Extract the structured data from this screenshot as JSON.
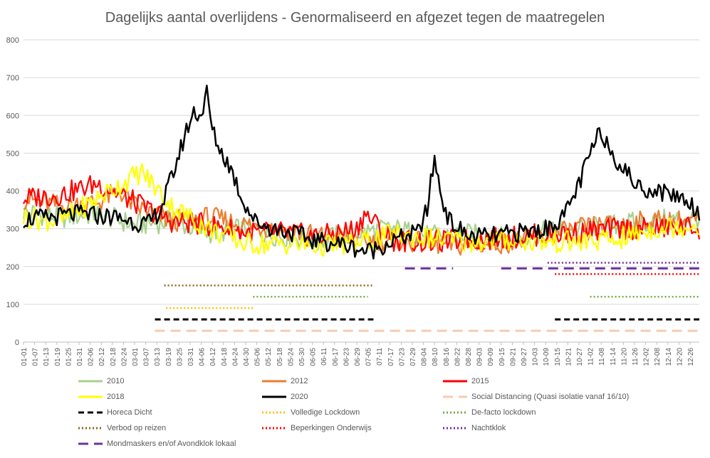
{
  "chart_data": {
    "type": "line",
    "title": "Dagelijks aantal overlijdens - Genormaliseerd  en afgezet tegen de maatregelen",
    "xlabel": "",
    "ylabel": "",
    "ylim": [
      0,
      800
    ],
    "yticks": [
      0,
      100,
      200,
      300,
      400,
      500,
      600,
      700,
      800
    ],
    "grid": true,
    "legend_position": "bottom",
    "x_tick_labels": [
      "01-01",
      "01-07",
      "01-13",
      "01-19",
      "01-25",
      "01-31",
      "02-06",
      "02-12",
      "02-18",
      "02-24",
      "03-01",
      "03-07",
      "03-13",
      "03-19",
      "03-25",
      "03-31",
      "04-06",
      "04-12",
      "04-18",
      "04-24",
      "04-30",
      "05-06",
      "05-12",
      "05-18",
      "05-24",
      "05-30",
      "06-05",
      "06-11",
      "06-17",
      "06-23",
      "06-29",
      "07-05",
      "07-11",
      "07-17",
      "07-23",
      "07-29",
      "08-04",
      "08-10",
      "08-16",
      "08-22",
      "08-28",
      "09-03",
      "09-09",
      "09-15",
      "09-21",
      "09-27",
      "10-03",
      "10-09",
      "10-15",
      "10-21",
      "10-27",
      "11-02",
      "11-08",
      "11-14",
      "11-20",
      "11-26",
      "12-02",
      "12-08",
      "12-14",
      "12-20",
      "12-26"
    ],
    "series": [
      {
        "name": "2010",
        "color": "#a9d18e",
        "x": [
          "01-01",
          "01-21",
          "02-10",
          "03-01",
          "03-21",
          "04-10",
          "04-30",
          "05-20",
          "06-09",
          "06-29",
          "07-19",
          "08-08",
          "08-28",
          "09-17",
          "10-07",
          "10-27",
          "11-16",
          "12-06",
          "12-26",
          "12-31"
        ],
        "values": [
          345,
          330,
          340,
          310,
          320,
          290,
          300,
          280,
          270,
          290,
          300,
          280,
          285,
          275,
          290,
          300,
          310,
          320,
          330,
          330
        ]
      },
      {
        "name": "2012",
        "color": "#ed7d31",
        "x": [
          "01-01",
          "01-21",
          "02-10",
          "02-22",
          "03-01",
          "03-21",
          "04-10",
          "04-30",
          "05-20",
          "06-09",
          "06-29",
          "07-19",
          "08-08",
          "08-28",
          "09-17",
          "10-07",
          "10-27",
          "11-16",
          "12-06",
          "12-26",
          "12-31"
        ],
        "values": [
          380,
          360,
          370,
          400,
          360,
          320,
          330,
          310,
          300,
          280,
          270,
          270,
          260,
          255,
          265,
          275,
          300,
          310,
          320,
          320,
          320
        ]
      },
      {
        "name": "2015",
        "color": "#ff0000",
        "x": [
          "01-01",
          "01-21",
          "02-10",
          "03-01",
          "03-21",
          "04-10",
          "04-30",
          "05-20",
          "06-09",
          "06-29",
          "07-03",
          "07-19",
          "08-08",
          "08-28",
          "09-17",
          "10-07",
          "10-27",
          "11-16",
          "12-06",
          "12-26",
          "12-31"
        ],
        "values": [
          380,
          390,
          420,
          370,
          320,
          310,
          290,
          290,
          280,
          300,
          340,
          270,
          265,
          270,
          275,
          285,
          290,
          300,
          300,
          305,
          300
        ]
      },
      {
        "name": "2018",
        "color": "#ffff00",
        "x": [
          "01-01",
          "01-21",
          "02-10",
          "03-01",
          "03-05",
          "03-21",
          "04-10",
          "04-30",
          "05-20",
          "06-09",
          "06-29",
          "07-19",
          "08-08",
          "08-28",
          "09-17",
          "10-07",
          "10-27",
          "11-16",
          "12-06",
          "12-26",
          "12-31"
        ],
        "values": [
          330,
          320,
          380,
          440,
          450,
          360,
          300,
          260,
          260,
          255,
          260,
          285,
          275,
          265,
          270,
          265,
          265,
          270,
          300,
          310,
          310
        ]
      },
      {
        "name": "2020",
        "color": "#000000",
        "x": [
          "01-01",
          "01-15",
          "02-01",
          "02-20",
          "03-08",
          "03-15",
          "03-22",
          "03-29",
          "04-02",
          "04-06",
          "04-09",
          "04-12",
          "04-16",
          "04-22",
          "04-28",
          "05-05",
          "05-15",
          "05-25",
          "06-05",
          "06-20",
          "07-05",
          "07-20",
          "08-01",
          "08-06",
          "08-10",
          "08-13",
          "08-18",
          "08-28",
          "09-10",
          "09-25",
          "10-10",
          "10-20",
          "10-28",
          "11-03",
          "11-08",
          "11-14",
          "11-20",
          "11-28",
          "12-08",
          "12-18",
          "12-26",
          "12-31"
        ],
        "values": [
          325,
          330,
          340,
          330,
          310,
          350,
          450,
          560,
          610,
          600,
          660,
          560,
          510,
          460,
          380,
          320,
          300,
          290,
          270,
          260,
          240,
          270,
          290,
          350,
          490,
          400,
          320,
          280,
          280,
          290,
          300,
          340,
          430,
          510,
          560,
          500,
          460,
          410,
          400,
          390,
          370,
          340
        ]
      }
    ],
    "measures": [
      {
        "name": "Social Distancing (Quasi isolatie vanaf 16/10)",
        "color": "#f8cbad",
        "style": "dashed-long",
        "level": 30,
        "ranges": [
          [
            "03-12",
            "12-31"
          ]
        ]
      },
      {
        "name": "Horeca Dicht",
        "color": "#000000",
        "style": "dashed",
        "level": 60,
        "ranges": [
          [
            "03-12",
            "07-08"
          ],
          [
            "10-14",
            "12-31"
          ]
        ]
      },
      {
        "name": "Volledige Lockdown",
        "color": "#ffc000",
        "style": "dotted",
        "level": 90,
        "ranges": [
          [
            "03-18",
            "05-04"
          ]
        ]
      },
      {
        "name": "De-facto lockdown",
        "color": "#70ad47",
        "style": "dotted",
        "level": 120,
        "ranges": [
          [
            "05-04",
            "07-05"
          ],
          [
            "11-02",
            "12-31"
          ]
        ]
      },
      {
        "name": "Verbod op reizen",
        "color": "#8b6914",
        "style": "dotted",
        "level": 150,
        "ranges": [
          [
            "03-17",
            "07-08"
          ]
        ]
      },
      {
        "name": "Beperkingen Onderwijs",
        "color": "#ff0000",
        "style": "dotted",
        "level": 180,
        "ranges": [
          [
            "10-14",
            "12-31"
          ]
        ]
      },
      {
        "name": "Nachtklok",
        "color": "#7030a0",
        "style": "dotted",
        "level": 210,
        "ranges": [
          [
            "10-10",
            "12-31"
          ]
        ]
      },
      {
        "name": "Mondmaskers en/of Avondklok lokaal",
        "color": "#7030a0",
        "style": "dashed-long",
        "level": 195,
        "ranges": [
          [
            "07-25",
            "08-20"
          ],
          [
            "09-15",
            "12-31"
          ]
        ]
      }
    ]
  },
  "legend": [
    {
      "label": "2010",
      "color": "#a9d18e",
      "style": "solid"
    },
    {
      "label": "2012",
      "color": "#ed7d31",
      "style": "solid"
    },
    {
      "label": "2015",
      "color": "#ff0000",
      "style": "solid"
    },
    {
      "label": "2018",
      "color": "#ffff00",
      "style": "solid"
    },
    {
      "label": "2020",
      "color": "#000000",
      "style": "solid"
    },
    {
      "label": "Social Distancing (Quasi isolatie vanaf 16/10)",
      "color": "#f8cbad",
      "style": "dashed-long"
    },
    {
      "label": "Horeca Dicht",
      "color": "#000000",
      "style": "dashed"
    },
    {
      "label": "Volledige Lockdown",
      "color": "#ffc000",
      "style": "dotted"
    },
    {
      "label": "De-facto lockdown",
      "color": "#70ad47",
      "style": "dotted"
    },
    {
      "label": "Verbod op reizen",
      "color": "#8b6914",
      "style": "dotted"
    },
    {
      "label": "Beperkingen Onderwijs",
      "color": "#ff0000",
      "style": "dotted"
    },
    {
      "label": "Nachtklok",
      "color": "#7030a0",
      "style": "dotted"
    },
    {
      "label": "Mondmaskers en/of Avondklok lokaal",
      "color": "#7030a0",
      "style": "dashed-long"
    }
  ]
}
